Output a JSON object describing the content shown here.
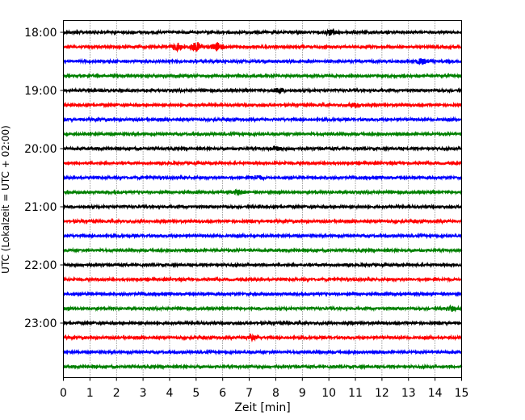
{
  "chart_data": {
    "type": "line",
    "title": "",
    "xlabel": "Zeit  [min]",
    "ylabel": "UTC (Lokalzeit = UTC + 02:00)",
    "xlim": [
      0,
      15
    ],
    "x_ticks": [
      "0",
      "1",
      "2",
      "3",
      "4",
      "5",
      "6",
      "7",
      "8",
      "9",
      "10",
      "11",
      "12",
      "13",
      "14",
      "15"
    ],
    "y_ticks": [
      "18:00",
      "19:00",
      "20:00",
      "21:00",
      "22:00",
      "23:00"
    ],
    "grid": "vertical dotted",
    "trace_interval_min": 15,
    "start_time": "18:00",
    "trace_colors": [
      "#000000",
      "#ff0000",
      "#0000ff",
      "#008000"
    ],
    "series": [
      {
        "start": "18:00",
        "color": "#000000",
        "amplitude": 0.25,
        "events": [
          {
            "x": 10.1,
            "amp": 0.6
          }
        ]
      },
      {
        "start": "18:15",
        "color": "#ff0000",
        "amplitude": 0.25,
        "events": [
          {
            "x": 4.3,
            "amp": 0.8
          },
          {
            "x": 5.0,
            "amp": 1.0
          },
          {
            "x": 5.8,
            "amp": 0.9
          }
        ]
      },
      {
        "start": "18:30",
        "color": "#0000ff",
        "amplitude": 0.25,
        "events": [
          {
            "x": 13.5,
            "amp": 0.6
          }
        ]
      },
      {
        "start": "18:45",
        "color": "#008000",
        "amplitude": 0.25,
        "events": []
      },
      {
        "start": "19:00",
        "color": "#000000",
        "amplitude": 0.25,
        "events": [
          {
            "x": 8.1,
            "amp": 0.45
          }
        ]
      },
      {
        "start": "19:15",
        "color": "#ff0000",
        "amplitude": 0.25,
        "events": [
          {
            "x": 11.0,
            "amp": 0.5
          }
        ]
      },
      {
        "start": "19:30",
        "color": "#0000ff",
        "amplitude": 0.25,
        "events": []
      },
      {
        "start": "19:45",
        "color": "#008000",
        "amplitude": 0.25,
        "events": []
      },
      {
        "start": "20:00",
        "color": "#000000",
        "amplitude": 0.25,
        "events": [
          {
            "x": 8.0,
            "amp": 0.4
          }
        ]
      },
      {
        "start": "20:15",
        "color": "#ff0000",
        "amplitude": 0.25,
        "events": []
      },
      {
        "start": "20:30",
        "color": "#0000ff",
        "amplitude": 0.25,
        "events": [
          {
            "x": 7.3,
            "amp": 0.5
          }
        ]
      },
      {
        "start": "20:45",
        "color": "#008000",
        "amplitude": 0.25,
        "events": [
          {
            "x": 6.6,
            "amp": 0.4
          }
        ]
      },
      {
        "start": "21:00",
        "color": "#000000",
        "amplitude": 0.25,
        "events": []
      },
      {
        "start": "21:15",
        "color": "#ff0000",
        "amplitude": 0.25,
        "events": []
      },
      {
        "start": "21:30",
        "color": "#0000ff",
        "amplitude": 0.25,
        "events": []
      },
      {
        "start": "21:45",
        "color": "#008000",
        "amplitude": 0.25,
        "events": []
      },
      {
        "start": "22:00",
        "color": "#000000",
        "amplitude": 0.25,
        "events": []
      },
      {
        "start": "22:15",
        "color": "#ff0000",
        "amplitude": 0.25,
        "events": []
      },
      {
        "start": "22:30",
        "color": "#0000ff",
        "amplitude": 0.25,
        "events": []
      },
      {
        "start": "22:45",
        "color": "#008000",
        "amplitude": 0.25,
        "events": [
          {
            "x": 14.6,
            "amp": 0.5
          }
        ]
      },
      {
        "start": "23:00",
        "color": "#000000",
        "amplitude": 0.25,
        "events": []
      },
      {
        "start": "23:15",
        "color": "#ff0000",
        "amplitude": 0.25,
        "events": [
          {
            "x": 7.1,
            "amp": 0.4
          }
        ]
      },
      {
        "start": "23:30",
        "color": "#0000ff",
        "amplitude": 0.25,
        "events": []
      },
      {
        "start": "23:45",
        "color": "#008000",
        "amplitude": 0.25,
        "events": []
      }
    ]
  }
}
